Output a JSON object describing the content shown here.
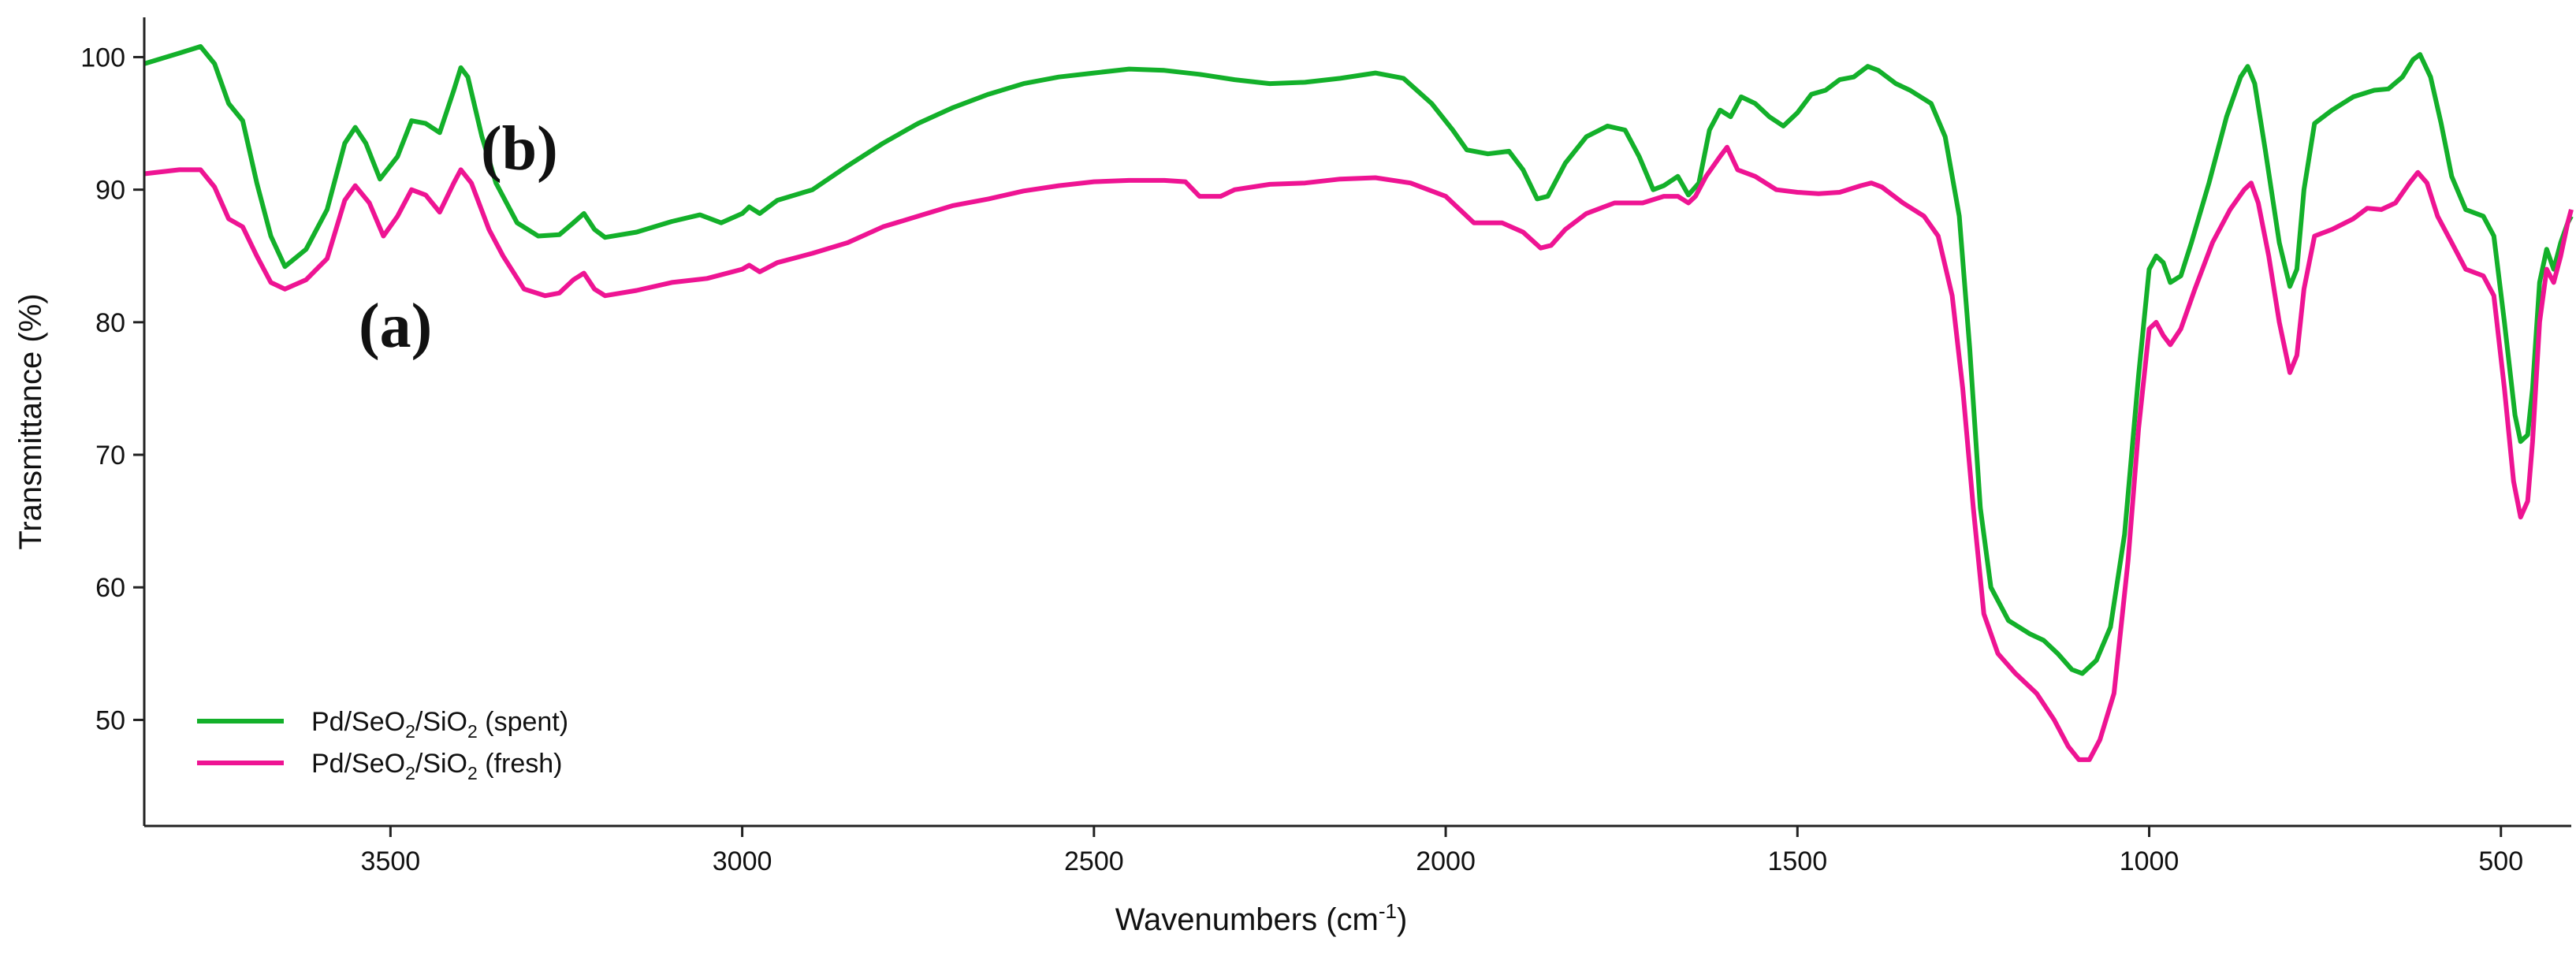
{
  "chart_data": {
    "type": "line",
    "title": "",
    "xlabel": "Wavenumbers (cm",
    "xlabel_sup": "-1",
    "xlabel_end": ")",
    "ylabel": "Transmittance (%)",
    "xlim": [
      3850,
      400
    ],
    "ylim": [
      42,
      103
    ],
    "x_reversed": true,
    "grid": false,
    "legend_position": "bottom-left",
    "x_ticks": [
      3500,
      3000,
      2500,
      2000,
      1500,
      1000,
      500
    ],
    "y_ticks": [
      50,
      60,
      70,
      80,
      90,
      100
    ],
    "annotations": [
      {
        "text": "(b)",
        "x": 3305,
        "y": 93
      },
      {
        "text": "(a)",
        "x": 3420,
        "y": 79
      }
    ],
    "series": [
      {
        "name_prefix": "Pd/SeO",
        "name_mid": "/SiO",
        "name_sub": "2",
        "name_suffix": " (spent)",
        "color": "#13b02a",
        "points": [
          [
            3850,
            99.5
          ],
          [
            3800,
            100.3
          ],
          [
            3770,
            100.8
          ],
          [
            3750,
            99.5
          ],
          [
            3730,
            96.5
          ],
          [
            3710,
            95.2
          ],
          [
            3690,
            90.5
          ],
          [
            3670,
            86.5
          ],
          [
            3650,
            84.2
          ],
          [
            3620,
            85.5
          ],
          [
            3590,
            88.5
          ],
          [
            3565,
            93.5
          ],
          [
            3550,
            94.7
          ],
          [
            3535,
            93.5
          ],
          [
            3515,
            90.8
          ],
          [
            3490,
            92.5
          ],
          [
            3470,
            95.2
          ],
          [
            3450,
            95.0
          ],
          [
            3430,
            94.3
          ],
          [
            3410,
            97.5
          ],
          [
            3400,
            99.2
          ],
          [
            3390,
            98.5
          ],
          [
            3370,
            94.0
          ],
          [
            3350,
            90.5
          ],
          [
            3320,
            87.5
          ],
          [
            3290,
            86.5
          ],
          [
            3260,
            86.6
          ],
          [
            3240,
            87.5
          ],
          [
            3225,
            88.2
          ],
          [
            3210,
            87.0
          ],
          [
            3195,
            86.4
          ],
          [
            3150,
            86.8
          ],
          [
            3100,
            87.6
          ],
          [
            3060,
            88.1
          ],
          [
            3030,
            87.5
          ],
          [
            3000,
            88.2
          ],
          [
            2990,
            88.7
          ],
          [
            2975,
            88.2
          ],
          [
            2950,
            89.2
          ],
          [
            2900,
            90.0
          ],
          [
            2850,
            91.8
          ],
          [
            2800,
            93.5
          ],
          [
            2750,
            95.0
          ],
          [
            2700,
            96.2
          ],
          [
            2650,
            97.2
          ],
          [
            2600,
            98.0
          ],
          [
            2550,
            98.5
          ],
          [
            2500,
            98.8
          ],
          [
            2450,
            99.1
          ],
          [
            2400,
            99.0
          ],
          [
            2350,
            98.7
          ],
          [
            2300,
            98.3
          ],
          [
            2250,
            98.0
          ],
          [
            2200,
            98.1
          ],
          [
            2150,
            98.4
          ],
          [
            2100,
            98.8
          ],
          [
            2060,
            98.4
          ],
          [
            2020,
            96.5
          ],
          [
            1990,
            94.5
          ],
          [
            1970,
            93.0
          ],
          [
            1940,
            92.7
          ],
          [
            1910,
            92.9
          ],
          [
            1890,
            91.5
          ],
          [
            1870,
            89.3
          ],
          [
            1855,
            89.5
          ],
          [
            1830,
            92.0
          ],
          [
            1800,
            94.0
          ],
          [
            1770,
            94.8
          ],
          [
            1745,
            94.5
          ],
          [
            1725,
            92.5
          ],
          [
            1705,
            90.0
          ],
          [
            1690,
            90.3
          ],
          [
            1670,
            91.0
          ],
          [
            1655,
            89.6
          ],
          [
            1640,
            90.5
          ],
          [
            1625,
            94.5
          ],
          [
            1610,
            96.0
          ],
          [
            1595,
            95.5
          ],
          [
            1580,
            97.0
          ],
          [
            1560,
            96.5
          ],
          [
            1540,
            95.5
          ],
          [
            1520,
            94.8
          ],
          [
            1500,
            95.8
          ],
          [
            1480,
            97.2
          ],
          [
            1460,
            97.5
          ],
          [
            1440,
            98.3
          ],
          [
            1420,
            98.5
          ],
          [
            1400,
            99.3
          ],
          [
            1385,
            99.0
          ],
          [
            1360,
            98.0
          ],
          [
            1340,
            97.5
          ],
          [
            1310,
            96.5
          ],
          [
            1290,
            94.0
          ],
          [
            1270,
            88.0
          ],
          [
            1255,
            78.0
          ],
          [
            1240,
            66.0
          ],
          [
            1225,
            60.0
          ],
          [
            1200,
            57.5
          ],
          [
            1170,
            56.5
          ],
          [
            1150,
            56.0
          ],
          [
            1130,
            55.0
          ],
          [
            1110,
            53.8
          ],
          [
            1095,
            53.5
          ],
          [
            1075,
            54.5
          ],
          [
            1055,
            57.0
          ],
          [
            1035,
            64.0
          ],
          [
            1015,
            76.0
          ],
          [
            1000,
            84.0
          ],
          [
            990,
            85.0
          ],
          [
            980,
            84.5
          ],
          [
            970,
            83.0
          ],
          [
            955,
            83.5
          ],
          [
            940,
            86.0
          ],
          [
            915,
            90.5
          ],
          [
            890,
            95.5
          ],
          [
            870,
            98.5
          ],
          [
            860,
            99.3
          ],
          [
            850,
            98.0
          ],
          [
            835,
            93.0
          ],
          [
            815,
            86.0
          ],
          [
            800,
            82.7
          ],
          [
            790,
            84.0
          ],
          [
            780,
            90.0
          ],
          [
            765,
            95.0
          ],
          [
            740,
            96.0
          ],
          [
            710,
            97.0
          ],
          [
            680,
            97.5
          ],
          [
            660,
            97.6
          ],
          [
            640,
            98.5
          ],
          [
            625,
            99.8
          ],
          [
            615,
            100.2
          ],
          [
            600,
            98.5
          ],
          [
            585,
            95.0
          ],
          [
            570,
            91.0
          ],
          [
            550,
            88.5
          ],
          [
            525,
            88.0
          ],
          [
            510,
            86.5
          ],
          [
            495,
            80.0
          ],
          [
            480,
            73.0
          ],
          [
            472,
            71.0
          ],
          [
            462,
            71.5
          ],
          [
            455,
            75.0
          ],
          [
            445,
            83.0
          ],
          [
            435,
            85.5
          ],
          [
            425,
            84.0
          ],
          [
            415,
            86.0
          ],
          [
            405,
            87.5
          ],
          [
            400,
            88.0
          ]
        ]
      },
      {
        "name_prefix": "Pd/SeO",
        "name_mid": "/SiO",
        "name_sub": "2",
        "name_suffix": " (fresh)",
        "color": "#ee1493",
        "points": [
          [
            3850,
            91.2
          ],
          [
            3800,
            91.5
          ],
          [
            3770,
            91.5
          ],
          [
            3750,
            90.2
          ],
          [
            3730,
            87.8
          ],
          [
            3710,
            87.2
          ],
          [
            3690,
            85.0
          ],
          [
            3670,
            83.0
          ],
          [
            3650,
            82.5
          ],
          [
            3620,
            83.2
          ],
          [
            3590,
            84.8
          ],
          [
            3565,
            89.2
          ],
          [
            3550,
            90.3
          ],
          [
            3530,
            89.0
          ],
          [
            3510,
            86.5
          ],
          [
            3490,
            88.0
          ],
          [
            3470,
            90.0
          ],
          [
            3450,
            89.6
          ],
          [
            3430,
            88.3
          ],
          [
            3410,
            90.5
          ],
          [
            3400,
            91.5
          ],
          [
            3385,
            90.5
          ],
          [
            3360,
            87.0
          ],
          [
            3340,
            85.0
          ],
          [
            3310,
            82.5
          ],
          [
            3280,
            82.0
          ],
          [
            3260,
            82.2
          ],
          [
            3240,
            83.2
          ],
          [
            3225,
            83.7
          ],
          [
            3210,
            82.5
          ],
          [
            3195,
            82.0
          ],
          [
            3150,
            82.4
          ],
          [
            3100,
            83.0
          ],
          [
            3050,
            83.3
          ],
          [
            3000,
            84.0
          ],
          [
            2990,
            84.3
          ],
          [
            2975,
            83.8
          ],
          [
            2950,
            84.5
          ],
          [
            2900,
            85.2
          ],
          [
            2850,
            86.0
          ],
          [
            2800,
            87.2
          ],
          [
            2750,
            88.0
          ],
          [
            2700,
            88.8
          ],
          [
            2650,
            89.3
          ],
          [
            2600,
            89.9
          ],
          [
            2550,
            90.3
          ],
          [
            2500,
            90.6
          ],
          [
            2450,
            90.7
          ],
          [
            2400,
            90.7
          ],
          [
            2370,
            90.6
          ],
          [
            2350,
            89.5
          ],
          [
            2320,
            89.5
          ],
          [
            2300,
            90.0
          ],
          [
            2250,
            90.4
          ],
          [
            2200,
            90.5
          ],
          [
            2150,
            90.8
          ],
          [
            2100,
            90.9
          ],
          [
            2050,
            90.5
          ],
          [
            2000,
            89.5
          ],
          [
            1960,
            87.5
          ],
          [
            1920,
            87.5
          ],
          [
            1890,
            86.8
          ],
          [
            1865,
            85.6
          ],
          [
            1850,
            85.8
          ],
          [
            1830,
            87.0
          ],
          [
            1800,
            88.2
          ],
          [
            1760,
            89.0
          ],
          [
            1720,
            89.0
          ],
          [
            1690,
            89.5
          ],
          [
            1670,
            89.5
          ],
          [
            1655,
            89.0
          ],
          [
            1645,
            89.5
          ],
          [
            1630,
            91.0
          ],
          [
            1610,
            92.5
          ],
          [
            1600,
            93.2
          ],
          [
            1585,
            91.5
          ],
          [
            1560,
            91.0
          ],
          [
            1530,
            90.0
          ],
          [
            1500,
            89.8
          ],
          [
            1470,
            89.7
          ],
          [
            1440,
            89.8
          ],
          [
            1410,
            90.3
          ],
          [
            1395,
            90.5
          ],
          [
            1380,
            90.2
          ],
          [
            1350,
            89.0
          ],
          [
            1320,
            88.0
          ],
          [
            1300,
            86.5
          ],
          [
            1280,
            82.0
          ],
          [
            1265,
            75.0
          ],
          [
            1250,
            66.0
          ],
          [
            1235,
            58.0
          ],
          [
            1215,
            55.0
          ],
          [
            1190,
            53.5
          ],
          [
            1160,
            52.0
          ],
          [
            1135,
            50.0
          ],
          [
            1115,
            48.0
          ],
          [
            1100,
            47.0
          ],
          [
            1085,
            47.0
          ],
          [
            1070,
            48.5
          ],
          [
            1050,
            52.0
          ],
          [
            1030,
            62.0
          ],
          [
            1015,
            72.0
          ],
          [
            1000,
            79.5
          ],
          [
            990,
            80.0
          ],
          [
            980,
            79.0
          ],
          [
            970,
            78.3
          ],
          [
            955,
            79.5
          ],
          [
            935,
            82.5
          ],
          [
            910,
            86.0
          ],
          [
            885,
            88.5
          ],
          [
            865,
            90.0
          ],
          [
            855,
            90.5
          ],
          [
            845,
            89.0
          ],
          [
            830,
            85.0
          ],
          [
            815,
            80.0
          ],
          [
            800,
            76.2
          ],
          [
            790,
            77.5
          ],
          [
            780,
            82.5
          ],
          [
            765,
            86.5
          ],
          [
            740,
            87.0
          ],
          [
            710,
            87.8
          ],
          [
            690,
            88.6
          ],
          [
            670,
            88.5
          ],
          [
            650,
            89.0
          ],
          [
            630,
            90.5
          ],
          [
            618,
            91.3
          ],
          [
            605,
            90.5
          ],
          [
            590,
            88.0
          ],
          [
            570,
            86.0
          ],
          [
            550,
            84.0
          ],
          [
            525,
            83.5
          ],
          [
            510,
            82.0
          ],
          [
            495,
            75.0
          ],
          [
            482,
            68.0
          ],
          [
            472,
            65.3
          ],
          [
            462,
            66.5
          ],
          [
            455,
            71.0
          ],
          [
            445,
            80.0
          ],
          [
            435,
            84.0
          ],
          [
            425,
            83.0
          ],
          [
            415,
            85.0
          ],
          [
            405,
            87.5
          ],
          [
            400,
            88.5
          ]
        ]
      }
    ]
  }
}
